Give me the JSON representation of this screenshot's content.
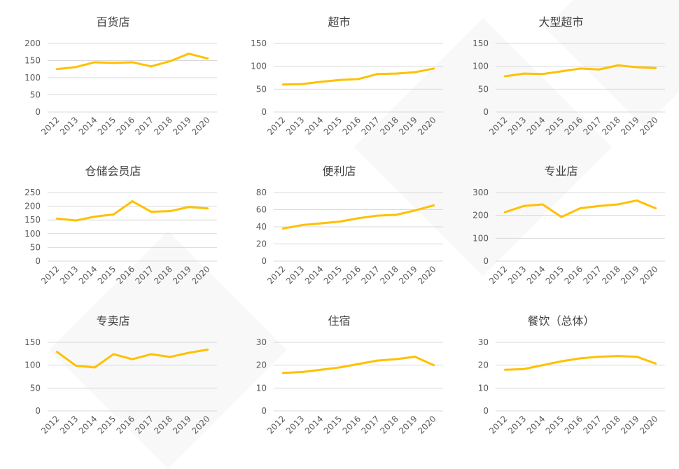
{
  "chart_data": [
    {
      "type": "line",
      "title": "百货店",
      "categories": [
        "2012",
        "2013",
        "2014",
        "2015",
        "2016",
        "2017",
        "2018",
        "2019",
        "2020"
      ],
      "values": [
        125,
        131,
        145,
        143,
        145,
        133,
        148,
        170,
        156
      ],
      "ylim": [
        0,
        200
      ],
      "yticks": [
        0,
        50,
        100,
        150,
        200
      ],
      "color": "#FFC000",
      "grid": true
    },
    {
      "type": "line",
      "title": "超市",
      "categories": [
        "2012",
        "2013",
        "2014",
        "2015",
        "2016",
        "2017",
        "2018",
        "2019",
        "2020"
      ],
      "values": [
        60,
        61,
        66,
        70,
        72,
        83,
        84,
        87,
        95
      ],
      "ylim": [
        0,
        150
      ],
      "yticks": [
        0,
        50,
        100,
        150
      ],
      "color": "#FFC000",
      "grid": true
    },
    {
      "type": "line",
      "title": "大型超市",
      "categories": [
        "2012",
        "2013",
        "2014",
        "2015",
        "2016",
        "2017",
        "2018",
        "2019",
        "2020"
      ],
      "values": [
        78,
        84,
        83,
        89,
        95,
        93,
        102,
        98,
        96
      ],
      "ylim": [
        0,
        150
      ],
      "yticks": [
        0,
        50,
        100,
        150
      ],
      "color": "#FFC000",
      "grid": true
    },
    {
      "type": "line",
      "title": "仓储会员店",
      "categories": [
        "2012",
        "2013",
        "2014",
        "2015",
        "2016",
        "2017",
        "2018",
        "2019",
        "2020"
      ],
      "values": [
        155,
        148,
        162,
        170,
        218,
        180,
        182,
        197,
        192
      ],
      "ylim": [
        0,
        250
      ],
      "yticks": [
        0,
        50,
        100,
        150,
        200,
        250
      ],
      "color": "#FFC000",
      "grid": true
    },
    {
      "type": "line",
      "title": "便利店",
      "categories": [
        "2012",
        "2013",
        "2014",
        "2015",
        "2016",
        "2017",
        "2018",
        "2019",
        "2020"
      ],
      "values": [
        38,
        42,
        44,
        46,
        50,
        53,
        54,
        59,
        65
      ],
      "ylim": [
        0,
        80
      ],
      "yticks": [
        0,
        20,
        40,
        60,
        80
      ],
      "color": "#FFC000",
      "grid": true
    },
    {
      "type": "line",
      "title": "专业店",
      "categories": [
        "2012",
        "2013",
        "2014",
        "2015",
        "2016",
        "2017",
        "2018",
        "2019",
        "2020"
      ],
      "values": [
        214,
        241,
        248,
        193,
        231,
        241,
        248,
        265,
        231
      ],
      "ylim": [
        0,
        300
      ],
      "yticks": [
        0,
        100,
        200,
        300
      ],
      "color": "#FFC000",
      "grid": true
    },
    {
      "type": "line",
      "title": "专卖店",
      "categories": [
        "2012",
        "2013",
        "2014",
        "2015",
        "2016",
        "2017",
        "2018",
        "2019",
        "2020"
      ],
      "values": [
        129,
        99,
        95,
        124,
        113,
        124,
        118,
        127,
        134
      ],
      "ylim": [
        0,
        150
      ],
      "yticks": [
        0,
        50,
        100,
        150
      ],
      "color": "#FFC000",
      "grid": true
    },
    {
      "type": "line",
      "title": "住宿",
      "categories": [
        "2012",
        "2013",
        "2014",
        "2015",
        "2016",
        "2017",
        "2018",
        "2019",
        "2020"
      ],
      "values": [
        16.6,
        17,
        18,
        19,
        20.5,
        22,
        22.6,
        23.7,
        20
      ],
      "ylim": [
        0,
        30
      ],
      "yticks": [
        0,
        10,
        20,
        30
      ],
      "color": "#FFC000",
      "grid": true
    },
    {
      "type": "line",
      "title": "餐饮（总体）",
      "categories": [
        "2012",
        "2013",
        "2014",
        "2015",
        "2016",
        "2017",
        "2018",
        "2019",
        "2020"
      ],
      "values": [
        18,
        18.3,
        20,
        21.7,
        23,
        23.7,
        24,
        23.7,
        20.7
      ],
      "ylim": [
        0,
        30
      ],
      "yticks": [
        0,
        10,
        20,
        30
      ],
      "color": "#FFC000",
      "grid": true
    }
  ]
}
